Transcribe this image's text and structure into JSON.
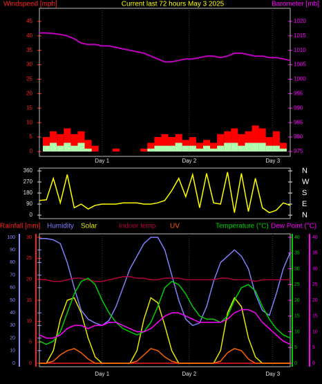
{
  "chart_data": [
    {
      "type": "combo",
      "title": "Current last 72 hours May 3 2025",
      "ylabel": "Windspeed [mph]",
      "y2label": "Barometer [mb]",
      "x": [
        0,
        2,
        4,
        6,
        8,
        10,
        12,
        14,
        16,
        18,
        20,
        22,
        24,
        26,
        28,
        30,
        32,
        34,
        36,
        38,
        40,
        42,
        44,
        46,
        48,
        50,
        52,
        54,
        56,
        58,
        60,
        62,
        64,
        66,
        68,
        70,
        72
      ],
      "xlim": [
        0,
        72
      ],
      "xticks": [
        {
          "value": 18,
          "label": "Day 1"
        },
        {
          "value": 43,
          "label": "Day 2"
        },
        {
          "value": 67,
          "label": "Day 3"
        }
      ],
      "ylim": [
        0,
        50
      ],
      "yticks": [
        0,
        5,
        10,
        15,
        20,
        25,
        30,
        35,
        40,
        45
      ],
      "y2lim": [
        975,
        1025
      ],
      "y2ticks": [
        975,
        980,
        985,
        990,
        995,
        1000,
        1005,
        1010,
        1015,
        1020
      ],
      "series": [
        {
          "type": "bar",
          "color": "#ff0000",
          "values": [
            0,
            5,
            7,
            6,
            8,
            6,
            7,
            4,
            2,
            0,
            0,
            1,
            0,
            0,
            0,
            1,
            3,
            5,
            6,
            5,
            6,
            4,
            5,
            3,
            4,
            3,
            6,
            7,
            8,
            6,
            7,
            9,
            8,
            5,
            7,
            3,
            0
          ]
        },
        {
          "type": "bar",
          "color": "#b0ffb0",
          "values": [
            0,
            2,
            3,
            2,
            3,
            2,
            3,
            1,
            0,
            0,
            0,
            0,
            0,
            0,
            0,
            0,
            1,
            2,
            2,
            2,
            3,
            2,
            2,
            1,
            2,
            1,
            2,
            3,
            3,
            2,
            3,
            3,
            3,
            2,
            2,
            1,
            0
          ]
        },
        {
          "type": "line",
          "axis": "y2",
          "color": "#c000c0",
          "values": [
            1016,
            1016,
            1015.8,
            1015.5,
            1015,
            1014,
            1012.5,
            1012,
            1012,
            1011.5,
            1011.5,
            1011,
            1010.5,
            1010,
            1009.5,
            1009,
            1008,
            1007,
            1006,
            1006,
            1006.5,
            1007,
            1007,
            1007.5,
            1008,
            1008,
            1007.5,
            1008,
            1009,
            1009,
            1008.5,
            1008,
            1008,
            1007.5,
            1007.5,
            1007,
            1006.5
          ]
        }
      ]
    },
    {
      "type": "line",
      "x": [
        0,
        2,
        4,
        6,
        8,
        10,
        12,
        14,
        16,
        18,
        20,
        22,
        24,
        26,
        28,
        30,
        32,
        34,
        36,
        38,
        40,
        42,
        44,
        46,
        48,
        50,
        52,
        54,
        56,
        58,
        60,
        62,
        64,
        66,
        68,
        70,
        72
      ],
      "xlim": [
        0,
        72
      ],
      "ylim": [
        0,
        360
      ],
      "yticks": [
        0,
        90,
        180,
        270,
        360
      ],
      "y2lim": [
        0,
        360
      ],
      "y2ticks": [
        {
          "value": 0,
          "label": "N"
        },
        {
          "value": 90,
          "label": "E"
        },
        {
          "value": 180,
          "label": "S"
        },
        {
          "value": 270,
          "label": "W"
        },
        {
          "value": 360,
          "label": "N"
        }
      ],
      "series": [
        {
          "type": "line",
          "color": "#ffff00",
          "values": [
            120,
            125,
            300,
            100,
            330,
            60,
            90,
            50,
            80,
            90,
            90,
            90,
            100,
            100,
            100,
            90,
            90,
            100,
            120,
            200,
            300,
            150,
            330,
            60,
            340,
            100,
            90,
            350,
            20,
            340,
            30,
            300,
            60,
            20,
            40,
            100,
            80
          ]
        }
      ]
    },
    {
      "type": "line",
      "x": [
        0,
        2,
        4,
        6,
        8,
        10,
        12,
        14,
        16,
        18,
        20,
        22,
        24,
        26,
        28,
        30,
        32,
        34,
        36,
        38,
        40,
        42,
        44,
        46,
        48,
        50,
        52,
        54,
        56,
        58,
        60,
        62,
        64,
        66,
        68,
        70,
        72
      ],
      "xlim": [
        0,
        72
      ],
      "xticks": [
        {
          "value": 18,
          "label": "Day 1"
        },
        {
          "value": 43,
          "label": "Day 2"
        },
        {
          "value": 67,
          "label": "Day 3"
        }
      ],
      "ylim": [
        0,
        100
      ],
      "yticks": [
        0,
        10,
        20,
        30,
        40,
        50,
        60,
        70,
        80,
        90,
        100
      ],
      "y3lim": [
        0,
        30
      ],
      "y3ticks": [
        0,
        5,
        10,
        15,
        20,
        25,
        30
      ],
      "y2lim": [
        0,
        40
      ],
      "y2ticks": [
        0,
        5,
        10,
        15,
        20,
        25,
        30,
        35,
        40
      ],
      "y4lim": [
        0,
        40
      ],
      "y4ticks": [
        0,
        5,
        10,
        15,
        20,
        25,
        30,
        35,
        40
      ],
      "series": [
        {
          "name": "Rainfall [mm]",
          "type": "line",
          "axis": "y3",
          "color": "#ff2020",
          "values": [
            0,
            0,
            0,
            0,
            0,
            0,
            0,
            0,
            0,
            0,
            0,
            0,
            0,
            0,
            0,
            0,
            0,
            0,
            0,
            0,
            0,
            0,
            0,
            0,
            0,
            0,
            0,
            0,
            0,
            0,
            0,
            0,
            0,
            0,
            0,
            0,
            0
          ]
        },
        {
          "name": "Humidity",
          "type": "line",
          "axis": "y",
          "color": "#8080ff",
          "values": [
            99,
            99,
            98,
            95,
            80,
            60,
            42,
            35,
            32,
            30,
            34,
            45,
            60,
            75,
            85,
            95,
            100,
            100,
            90,
            70,
            50,
            35,
            30,
            32,
            45,
            65,
            80,
            85,
            90,
            85,
            75,
            55,
            42,
            38,
            55,
            75,
            88
          ]
        },
        {
          "name": "Solar",
          "type": "line",
          "axis": "y",
          "color": "#e8e800",
          "values": [
            0,
            0,
            10,
            35,
            50,
            52,
            40,
            20,
            5,
            0,
            0,
            0,
            0,
            0,
            10,
            35,
            52,
            48,
            30,
            10,
            0,
            0,
            0,
            0,
            0,
            0,
            10,
            40,
            52,
            45,
            20,
            5,
            0,
            0,
            0,
            0,
            0
          ]
        },
        {
          "name": "Indoor temp",
          "type": "line",
          "axis": "y2",
          "color": "#b00040",
          "values": [
            26.5,
            26.5,
            26,
            26,
            26.5,
            27,
            27,
            26.5,
            26,
            26,
            26.5,
            27,
            27.5,
            27.5,
            27,
            27,
            26.5,
            26.5,
            27,
            27,
            27,
            26.5,
            26.5,
            26.5,
            26.5,
            26.5,
            27,
            27,
            26.5,
            26.5,
            26.5,
            26,
            26.5,
            26.5,
            26.5,
            26.5,
            26.5
          ]
        },
        {
          "name": "UV",
          "type": "line",
          "axis": "y3",
          "color": "#ff6000",
          "values": [
            0,
            0,
            0.5,
            2,
            3,
            3.5,
            2.5,
            1,
            0,
            0,
            0,
            0,
            0,
            0,
            0.5,
            2,
            3.5,
            3,
            1.5,
            0.5,
            0,
            0,
            0,
            0,
            0,
            0,
            0.5,
            2.5,
            3.5,
            3,
            1,
            0,
            0,
            0,
            0,
            0,
            0
          ]
        },
        {
          "name": "Temperature (°C)",
          "type": "line",
          "axis": "y2",
          "color": "#00d000",
          "values": [
            7,
            6,
            7,
            10,
            16,
            22,
            26,
            27,
            25,
            20,
            16,
            13,
            11,
            10,
            9,
            10,
            13,
            18,
            24,
            26,
            25,
            22,
            18,
            15,
            14,
            14,
            13,
            15,
            20,
            24,
            25,
            23,
            18,
            14,
            11,
            9,
            8
          ]
        },
        {
          "name": "Dew Point (°C)",
          "type": "line",
          "axis": "y4",
          "color": "#ff00ff",
          "values": [
            9,
            8,
            8,
            9,
            11,
            12,
            12,
            11,
            12,
            12,
            13,
            13,
            12,
            11,
            10,
            10,
            11,
            13,
            15,
            16,
            16,
            15,
            14,
            13,
            13,
            13,
            13,
            14,
            16,
            17,
            17,
            16,
            13,
            11,
            9,
            7,
            6
          ]
        }
      ]
    }
  ]
}
